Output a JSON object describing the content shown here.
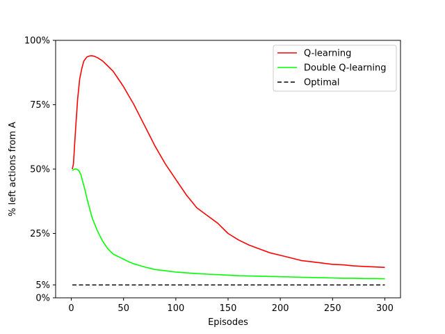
{
  "chart_data": {
    "type": "line",
    "title": "",
    "xlabel": "Episodes",
    "ylabel": "% left actions from A",
    "xlim": [
      -15,
      315
    ],
    "ylim": [
      0,
      100
    ],
    "xticks": [
      0,
      50,
      100,
      150,
      200,
      250,
      300
    ],
    "xtick_labels": [
      "0",
      "50",
      "100",
      "150",
      "200",
      "250",
      "300"
    ],
    "yticks": [
      0,
      5,
      25,
      50,
      75,
      100
    ],
    "ytick_labels": [
      "0%",
      "5%",
      "25%",
      "50%",
      "75%",
      "100%"
    ],
    "grid": false,
    "legend_position": "top-right",
    "series": [
      {
        "name": "Q-learning",
        "color": "#ff0000",
        "style": "solid",
        "x": [
          1,
          2,
          4,
          6,
          8,
          10,
          12,
          15,
          18,
          20,
          22,
          25,
          30,
          35,
          40,
          45,
          50,
          55,
          60,
          65,
          70,
          75,
          80,
          90,
          100,
          110,
          120,
          130,
          140,
          150,
          160,
          170,
          180,
          190,
          200,
          210,
          220,
          230,
          240,
          250,
          260,
          270,
          280,
          290,
          300
        ],
        "y": [
          50,
          52,
          65,
          77,
          85,
          89,
          92,
          93.6,
          94,
          94,
          93.8,
          93.3,
          92,
          90,
          88,
          85,
          82,
          78.5,
          75,
          71,
          67,
          63,
          59,
          52,
          46,
          40,
          35,
          32,
          29,
          25,
          22.5,
          20.5,
          19,
          17.5,
          16.5,
          15.5,
          14.5,
          14,
          13.5,
          13,
          12.8,
          12.4,
          12.2,
          12,
          11.8
        ]
      },
      {
        "name": "Double Q-learning",
        "color": "#00ff00",
        "style": "solid",
        "x": [
          1,
          3,
          5,
          7,
          9,
          11,
          13,
          15,
          18,
          20,
          25,
          30,
          35,
          40,
          45,
          50,
          55,
          60,
          70,
          80,
          90,
          100,
          110,
          120,
          130,
          140,
          150,
          160,
          170,
          180,
          190,
          200,
          210,
          220,
          230,
          240,
          250,
          260,
          270,
          280,
          290,
          300
        ],
        "y": [
          49.5,
          50,
          50,
          49.5,
          48,
          45,
          42,
          38.5,
          34,
          31,
          26,
          22,
          19,
          17,
          16,
          15,
          14,
          13.2,
          12,
          11,
          10.5,
          10,
          9.7,
          9.4,
          9.2,
          9,
          8.8,
          8.6,
          8.5,
          8.4,
          8.3,
          8.2,
          8.1,
          8,
          7.9,
          7.8,
          7.7,
          7.6,
          7.6,
          7.5,
          7.5,
          7.4
        ]
      },
      {
        "name": "Optimal",
        "color": "#000000",
        "style": "dashed",
        "x": [
          1,
          300
        ],
        "y": [
          5,
          5
        ]
      }
    ]
  }
}
